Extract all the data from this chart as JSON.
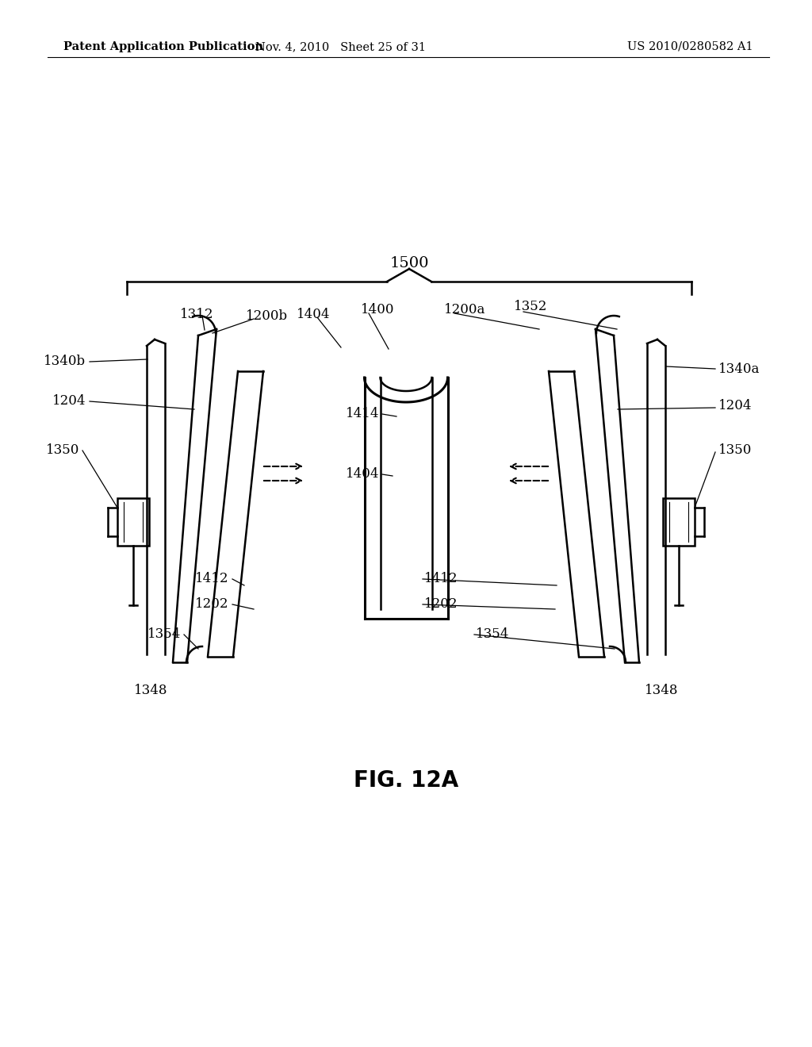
{
  "bg_color": "#ffffff",
  "header_left": "Patent Application Publication",
  "header_mid": "Nov. 4, 2010   Sheet 25 of 31",
  "header_right": "US 2010/0280582 A1",
  "fig_label": "FIG. 12A",
  "label_1500": "1500",
  "label_1312": "1312",
  "label_1200b": "1200b",
  "label_1404a": "1404",
  "label_1400": "1400",
  "label_1200a": "1200a",
  "label_1352": "1352",
  "label_1340b": "1340b",
  "label_1204_l": "1204",
  "label_1414": "1414",
  "label_1340a": "1340a",
  "label_1204_r": "1204",
  "label_1350_l": "1350",
  "label_1404b": "1404",
  "label_1350_r": "1350",
  "label_1412_l": "1412",
  "label_1412_r": "1412",
  "label_1202_l": "1202",
  "label_1202_r": "1202",
  "label_1354_l": "1354",
  "label_1354_r": "1354",
  "label_1348_l": "1348",
  "label_1348_r": "1348"
}
